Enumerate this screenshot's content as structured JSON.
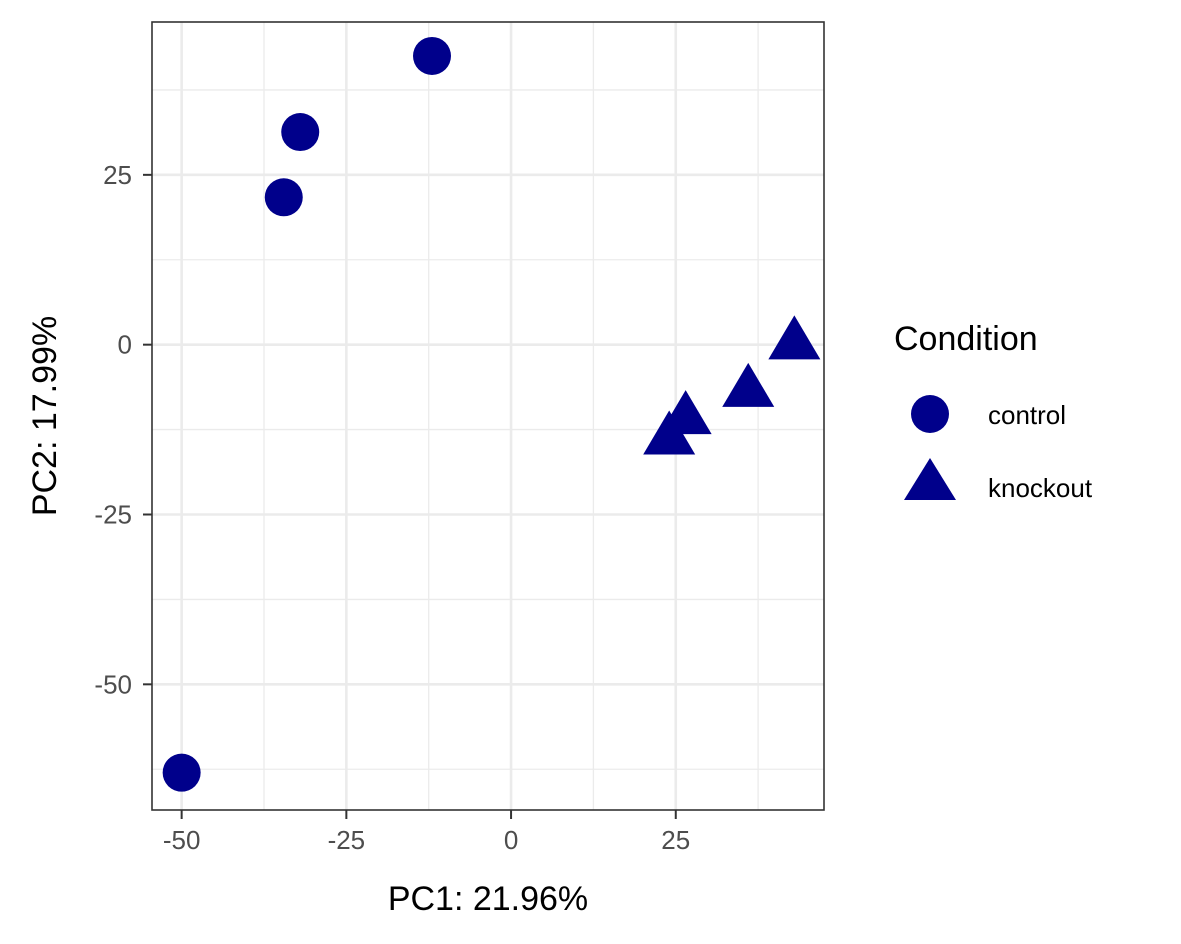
{
  "chart_data": {
    "type": "scatter",
    "xlabel": "PC1: 21.96%",
    "ylabel": "PC2: 17.99%",
    "xlim": [
      -54.5,
      47.5
    ],
    "ylim": [
      -68.5,
      47.5
    ],
    "x_ticks": [
      -50,
      -25,
      0,
      25
    ],
    "x_tick_labels": [
      "-50",
      "-25",
      "0",
      "25"
    ],
    "y_ticks": [
      -50,
      -25,
      0,
      25
    ],
    "y_tick_labels": [
      "-50",
      "-25",
      "0",
      "25"
    ],
    "grid": true,
    "color": "#00008B",
    "legend": {
      "title": "Condition",
      "position": "right",
      "entries": [
        {
          "label": "control",
          "shape": "circle"
        },
        {
          "label": "knockout",
          "shape": "triangle"
        }
      ]
    },
    "series": [
      {
        "name": "control",
        "shape": "circle",
        "points": [
          {
            "x": -12.0,
            "y": 42.5
          },
          {
            "x": -32.0,
            "y": 31.3
          },
          {
            "x": -34.5,
            "y": 21.7
          },
          {
            "x": -50.0,
            "y": -63.0
          }
        ]
      },
      {
        "name": "knockout",
        "shape": "triangle",
        "points": [
          {
            "x": 43.0,
            "y": 0.0
          },
          {
            "x": 36.0,
            "y": -7.0
          },
          {
            "x": 26.5,
            "y": -11.0
          },
          {
            "x": 24.0,
            "y": -14.0
          }
        ]
      }
    ]
  }
}
